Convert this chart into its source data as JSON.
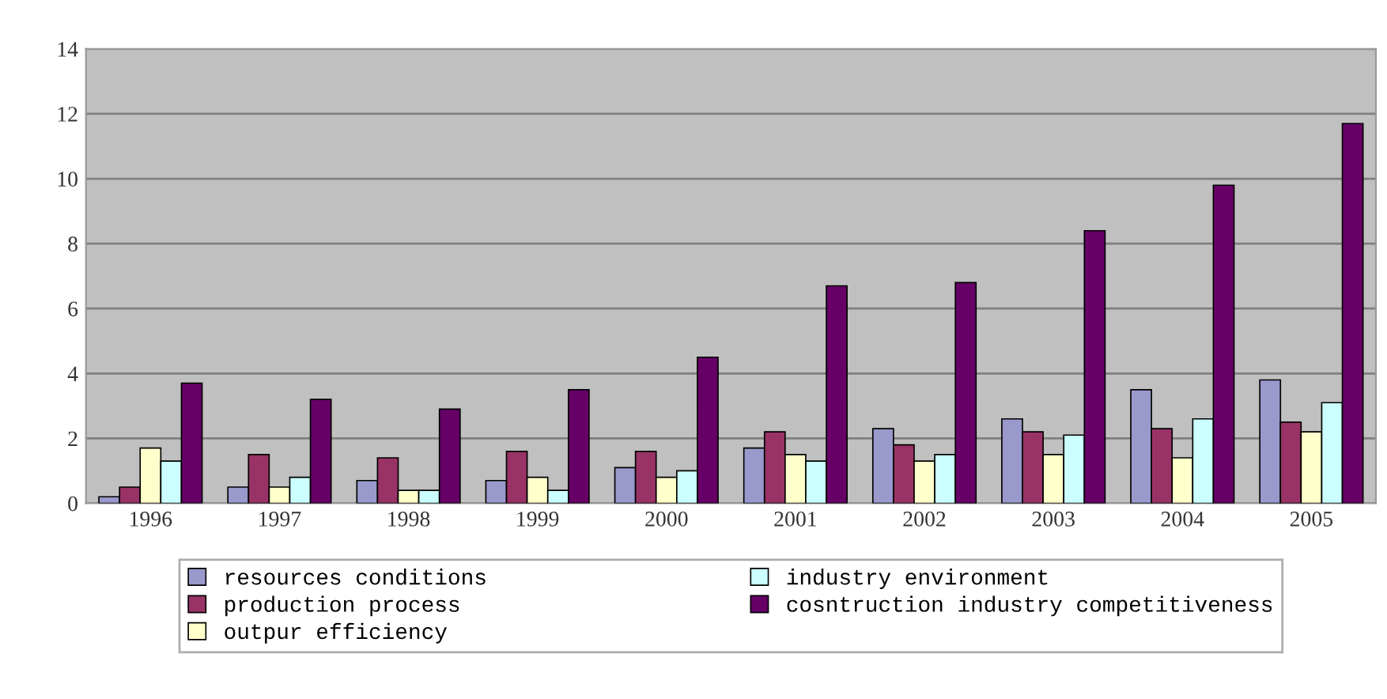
{
  "chart_data": {
    "type": "bar",
    "categories": [
      "1996",
      "1997",
      "1998",
      "1999",
      "2000",
      "2001",
      "2002",
      "2003",
      "2004",
      "2005"
    ],
    "series": [
      {
        "name": "resources conditions",
        "color": "#9999cc",
        "values": [
          0.2,
          0.5,
          0.7,
          0.7,
          1.1,
          1.7,
          2.3,
          2.6,
          3.5,
          3.8
        ]
      },
      {
        "name": "production process",
        "color": "#993366",
        "values": [
          0.5,
          1.5,
          1.4,
          1.6,
          1.6,
          2.2,
          1.8,
          2.2,
          2.3,
          2.5
        ]
      },
      {
        "name": "outpur efficiency",
        "color": "#ffffcc",
        "values": [
          1.7,
          0.5,
          0.4,
          0.8,
          0.8,
          1.5,
          1.3,
          1.5,
          1.4,
          2.2
        ]
      },
      {
        "name": "industry environment",
        "color": "#ccffff",
        "values": [
          1.3,
          0.8,
          0.4,
          0.4,
          1.0,
          1.3,
          1.5,
          2.1,
          2.6,
          3.1
        ]
      },
      {
        "name": "cosntruction industry competitiveness",
        "color": "#660066",
        "values": [
          3.7,
          3.2,
          2.9,
          3.5,
          4.5,
          6.7,
          6.8,
          8.4,
          9.8,
          11.7
        ]
      }
    ],
    "ylim": [
      0,
      14
    ],
    "yticks": [
      0,
      2,
      4,
      6,
      8,
      10,
      12,
      14
    ],
    "grid": "y",
    "legend": "bottom"
  }
}
